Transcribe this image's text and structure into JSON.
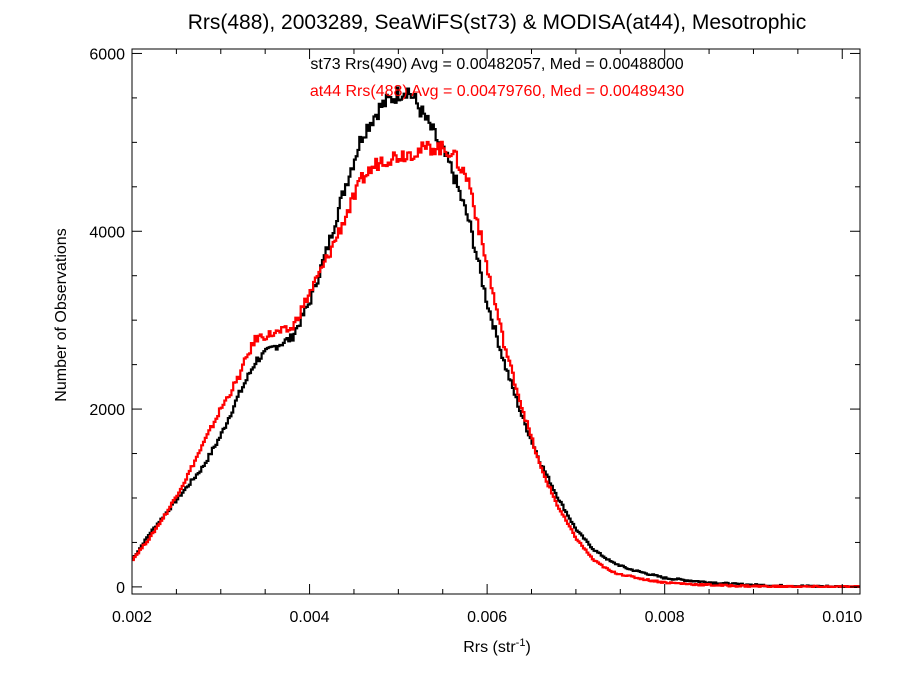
{
  "chart_data": {
    "type": "line",
    "title": "Rrs(488), 2003289, SeaWiFS(st73) & MODISA(at44), Mesotrophic",
    "xlabel_main": "Rrs (str",
    "xlabel_sup": "-1",
    "xlabel_end": ")",
    "ylabel": "Number of Observations",
    "xlim": [
      0.002,
      0.0102
    ],
    "ylim": [
      -80,
      6050
    ],
    "x_ticks": [
      0.002,
      0.004,
      0.006,
      0.008,
      0.01
    ],
    "x_tick_labels": [
      "0.002",
      "0.004",
      "0.006",
      "0.008",
      "0.010"
    ],
    "y_ticks": [
      0,
      2000,
      4000,
      6000
    ],
    "y_tick_labels": [
      "0",
      "2000",
      "4000",
      "6000"
    ],
    "annotations": [
      {
        "text": "st73 Rrs(490) Avg = 0.00482057, Med = 0.00488000",
        "color": "#000000"
      },
      {
        "text": "at44 Rrs(488) Avg = 0.00479760, Med = 0.00489430",
        "color": "#ff0000"
      }
    ],
    "series": [
      {
        "color": "#000000",
        "x": [
          0.002,
          0.0022,
          0.0024,
          0.0026,
          0.0028,
          0.003,
          0.0032,
          0.0034,
          0.0036,
          0.0038,
          0.004,
          0.0042,
          0.0044,
          0.0046,
          0.0048,
          0.005,
          0.0051,
          0.0052,
          0.0054,
          0.0056,
          0.0058,
          0.006,
          0.0062,
          0.0064,
          0.0066,
          0.0068,
          0.007,
          0.0072,
          0.0074,
          0.0076,
          0.0078,
          0.008,
          0.0084,
          0.0088,
          0.0092,
          0.0096,
          0.01,
          0.0102
        ],
        "y": [
          300,
          600,
          850,
          1100,
          1350,
          1700,
          2150,
          2550,
          2700,
          2800,
          3200,
          3800,
          4500,
          5100,
          5400,
          5550,
          5600,
          5450,
          5100,
          4700,
          4100,
          3200,
          2500,
          1900,
          1400,
          1000,
          650,
          420,
          280,
          200,
          150,
          100,
          60,
          30,
          15,
          8,
          3,
          0
        ]
      },
      {
        "color": "#ff0000",
        "x": [
          0.002,
          0.0022,
          0.0024,
          0.0026,
          0.0028,
          0.003,
          0.0032,
          0.0033,
          0.0034,
          0.0036,
          0.0038,
          0.004,
          0.0042,
          0.0044,
          0.0046,
          0.0048,
          0.005,
          0.0052,
          0.0054,
          0.0056,
          0.0058,
          0.006,
          0.0062,
          0.0064,
          0.0066,
          0.0068,
          0.007,
          0.0072,
          0.0074,
          0.0076,
          0.0078,
          0.008,
          0.0084,
          0.0088,
          0.0092,
          0.0096,
          0.01,
          0.0102
        ],
        "y": [
          300,
          550,
          850,
          1200,
          1600,
          2000,
          2350,
          2600,
          2800,
          2850,
          2900,
          3300,
          3700,
          4150,
          4600,
          4800,
          4850,
          4900,
          4950,
          4900,
          4550,
          3600,
          2700,
          2000,
          1350,
          900,
          550,
          300,
          170,
          120,
          80,
          50,
          25,
          12,
          5,
          2,
          1,
          0
        ]
      }
    ]
  }
}
